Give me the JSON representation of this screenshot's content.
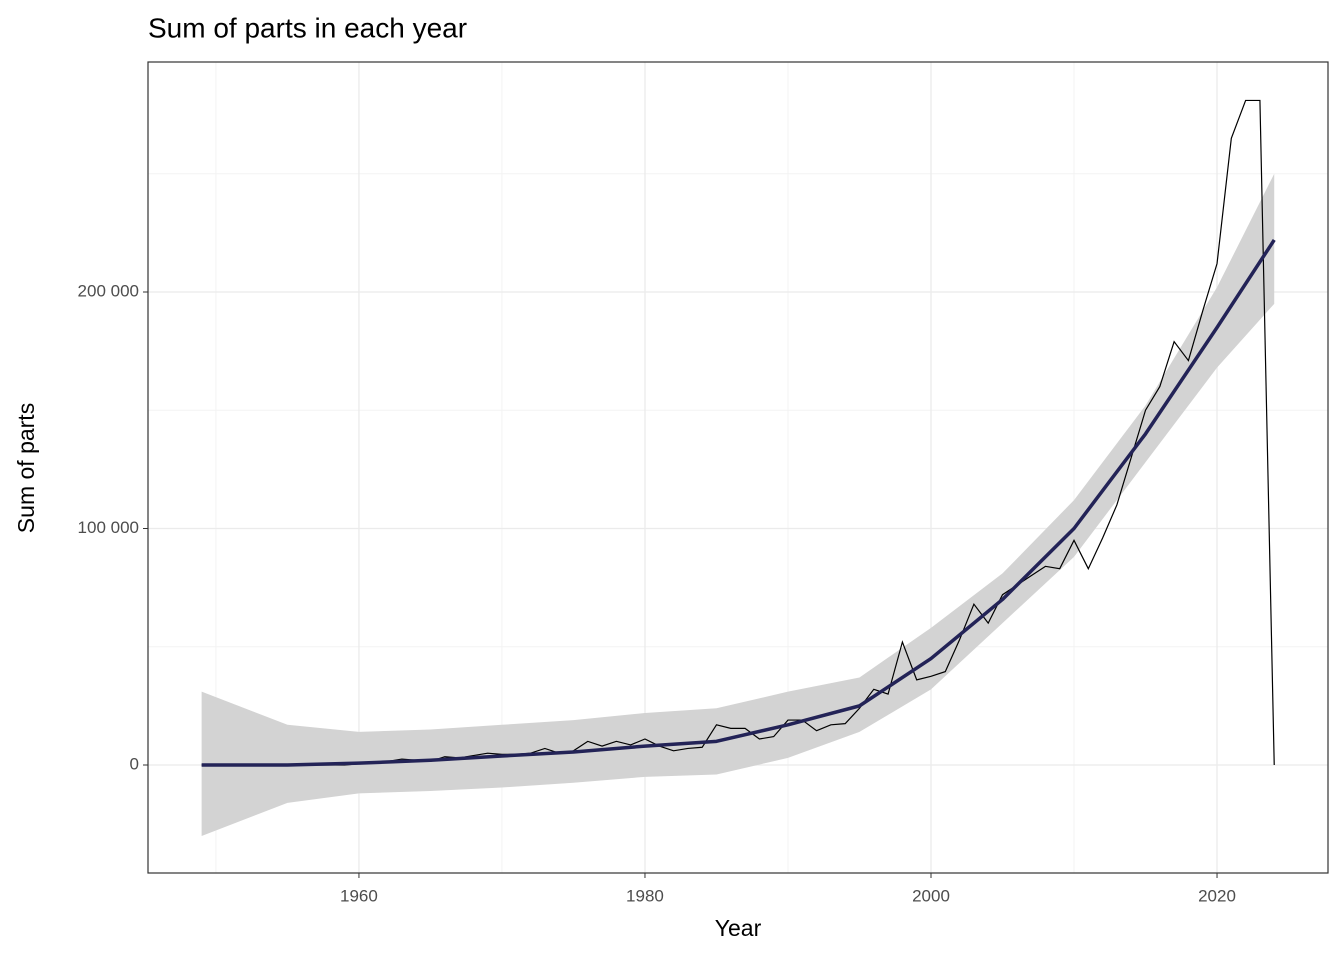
{
  "chart_data": {
    "type": "line",
    "title": "Sum of parts in each year",
    "x_label": "Year",
    "y_label": "Sum of parts",
    "xlim": [
      1945.25,
      2027.76
    ],
    "ylim": [
      -45666,
      297252
    ],
    "xticks": [
      1960,
      1980,
      2000,
      2020
    ],
    "yticks": [
      0,
      {
        "value": 100000,
        "label": "100 000"
      },
      {
        "value": 200000,
        "label": "200 000"
      }
    ],
    "x_minor_ticks": [
      1950,
      1970,
      1990,
      2010
    ],
    "y_minor_ticks": [
      50000,
      150000,
      250000
    ],
    "grid": true,
    "series": [
      {
        "color": "#000000",
        "x": [
          1949,
          1950,
          1951,
          1952,
          1953,
          1954,
          1955,
          1956,
          1957,
          1958,
          1959,
          1960,
          1961,
          1962,
          1963,
          1964,
          1965,
          1966,
          1967,
          1968,
          1969,
          1970,
          1971,
          1972,
          1973,
          1974,
          1975,
          1976,
          1977,
          1978,
          1979,
          1980,
          1981,
          1982,
          1983,
          1984,
          1985,
          1986,
          1987,
          1988,
          1989,
          1990,
          1991,
          1992,
          1993,
          1994,
          1995,
          1996,
          1997,
          1998,
          1999,
          2000,
          2001,
          2002,
          2003,
          2004,
          2005,
          2006,
          2007,
          2008,
          2009,
          2010,
          2011,
          2012,
          2013,
          2014,
          2015,
          2016,
          2017,
          2018,
          2019,
          2020,
          2021,
          2022,
          2023,
          2024
        ],
        "values": [
          0,
          0,
          0,
          0,
          0,
          0,
          0,
          0,
          0,
          0,
          0,
          500,
          800,
          1500,
          2500,
          2000,
          1500,
          3500,
          3000,
          4000,
          5000,
          4500,
          4500,
          5000,
          7000,
          5000,
          6000,
          10000,
          8000,
          10000,
          8500,
          11000,
          8000,
          6000,
          7000,
          7500,
          17000,
          15500,
          15500,
          11000,
          12000,
          19000,
          19000,
          14500,
          17000,
          17500,
          24000,
          32000,
          30000,
          52000,
          36000,
          37500,
          39500,
          53000,
          68000,
          60000,
          72000,
          76000,
          80000,
          84000,
          83000,
          95000,
          83000,
          96000,
          110000,
          130000,
          150000,
          160000,
          179000,
          171000,
          192000,
          212000,
          265000,
          281000,
          281000,
          0
        ]
      }
    ],
    "smooth": {
      "color": "#232357",
      "band_color": "#d3d3d3",
      "x": [
        1949,
        1955,
        1960,
        1965,
        1970,
        1975,
        1980,
        1985,
        1990,
        1995,
        2000,
        2005,
        2010,
        2015,
        2020,
        2024
      ],
      "values": [
        0,
        0,
        800,
        2000,
        3800,
        5500,
        8000,
        10000,
        17000,
        25000,
        45000,
        70000,
        100000,
        140000,
        185000,
        222000
      ],
      "lower": [
        -30000,
        -16000,
        -12000,
        -11000,
        -9500,
        -7500,
        -5000,
        -4000,
        3000,
        14000,
        32000,
        60000,
        88000,
        128000,
        168000,
        195000
      ],
      "upper": [
        31000,
        17000,
        14000,
        15000,
        17000,
        19000,
        22000,
        24000,
        31000,
        37000,
        58000,
        81000,
        112000,
        152000,
        202000,
        250000
      ]
    }
  }
}
